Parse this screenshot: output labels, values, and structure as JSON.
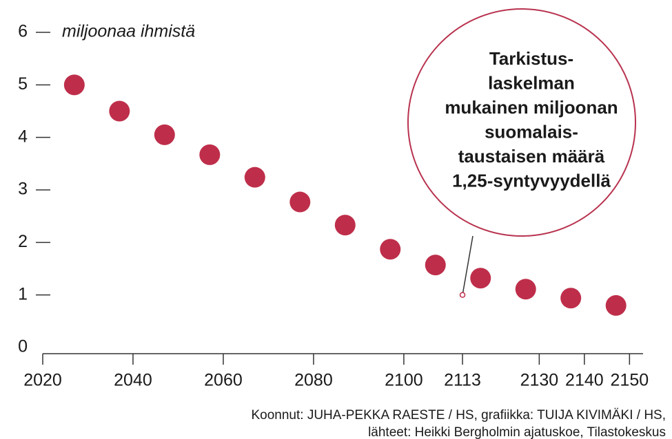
{
  "chart_data": {
    "type": "scatter",
    "ylabel": "miljoonaa ihmistä",
    "x": [
      2027,
      2037,
      2047,
      2057,
      2067,
      2077,
      2087,
      2097,
      2107,
      2117,
      2127,
      2137,
      2147
    ],
    "values": [
      5.0,
      4.5,
      4.05,
      3.67,
      3.24,
      2.77,
      2.33,
      1.87,
      1.57,
      1.32,
      1.11,
      0.94,
      0.8
    ],
    "color": "#be2e4a",
    "xlim": [
      2020,
      2153
    ],
    "xticks": [
      2020,
      2040,
      2060,
      2080,
      2100,
      2113,
      2130,
      2140,
      2150
    ],
    "ylim": [
      0,
      6
    ],
    "yticks": [
      0,
      1,
      2,
      3,
      4,
      5,
      6
    ],
    "annotation": {
      "x": 2113,
      "y": 1,
      "text": [
        "Tarkistus-",
        "laskelman",
        "mukainen miljoonan",
        "suomalais-",
        "taustaisen määrä",
        "1,25-syntyvyydellä"
      ]
    },
    "source": [
      "Koonnut: JUHA-PEKKA RAESTE / HS, grafiikka: TUIJA KIVIMÄKI / HS,",
      "lähteet: Heikki Bergholmin ajatuskoe, Tilastokeskus"
    ]
  }
}
